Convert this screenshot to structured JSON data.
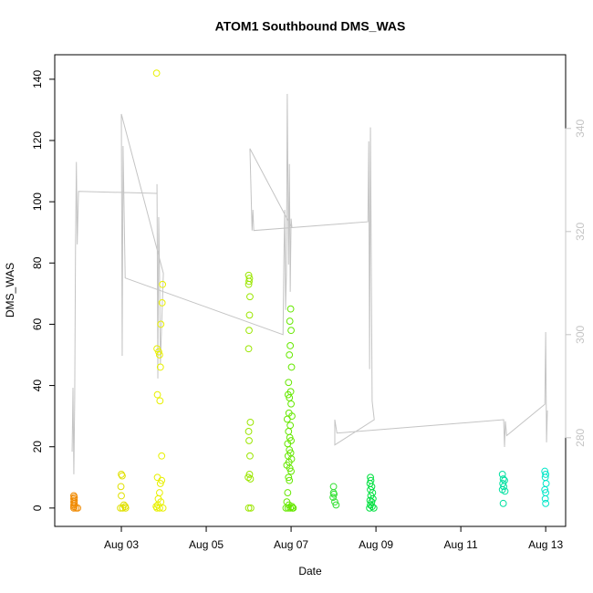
{
  "chart_data": {
    "type": "scatter",
    "title": "ATOM1 Southbound DMS_WAS",
    "x_label": "Date",
    "y_label": "DMS_WAS",
    "xlim": [
      1.43,
      13.47
    ],
    "ylim": [
      -6,
      148
    ],
    "y2lim": [
      262.8,
      354.3
    ],
    "xticks": [
      {
        "value": 3,
        "label": "Aug 03"
      },
      {
        "value": 5,
        "label": "Aug 05"
      },
      {
        "value": 7,
        "label": "Aug 07"
      },
      {
        "value": 9,
        "label": "Aug 09"
      },
      {
        "value": 11,
        "label": "Aug 11"
      },
      {
        "value": 13,
        "label": "Aug 13"
      }
    ],
    "yticks": [
      0,
      20,
      40,
      60,
      80,
      100,
      120,
      140
    ],
    "y2ticks": [
      280,
      300,
      320,
      340
    ],
    "series": [
      {
        "color": "#f08a00",
        "x": [
          1.88,
          1.88,
          1.88,
          1.89,
          1.88,
          1.89,
          1.88,
          1.89,
          1.88,
          1.93,
          1.97
        ],
        "values": [
          0,
          0.5,
          1,
          1.5,
          2,
          2.5,
          3,
          3.5,
          4,
          0,
          0
        ]
      },
      {
        "color": "#e0e000",
        "x": [
          3.0,
          3.02,
          2.99,
          3.0,
          3.06,
          2.98,
          3.03,
          3.09,
          3.1
        ],
        "values": [
          11,
          10.5,
          7,
          4,
          1,
          0,
          0,
          0.5,
          0
        ]
      },
      {
        "color": "#e8f000",
        "x": [
          3.83,
          3.97,
          3.96,
          3.93,
          3.84,
          3.88,
          3.9,
          3.92,
          3.85,
          3.91,
          3.95,
          3.85,
          3.95,
          3.92,
          3.9,
          3.87,
          3.93,
          3.86,
          3.82,
          3.84,
          3.9,
          3.98
        ],
        "values": [
          142,
          73,
          67,
          60,
          52,
          51,
          50,
          46,
          37,
          35,
          17,
          10,
          9,
          8,
          5,
          3,
          2,
          1,
          0.5,
          0,
          0,
          0
        ]
      },
      {
        "color": "#9be600",
        "x": [
          6.0,
          6.02,
          6.01,
          6.0,
          6.03,
          6.02,
          6.01,
          6.0,
          6.04,
          6.0,
          6.01,
          6.03,
          6.02,
          5.99,
          6.04,
          6.0,
          6.05
        ],
        "values": [
          76,
          75,
          74,
          73,
          69,
          63,
          58,
          52,
          28,
          25,
          22,
          17,
          11,
          10,
          9.5,
          0,
          0
        ]
      },
      {
        "color": "#66e800",
        "x": [
          6.99,
          6.97,
          7.0,
          6.98,
          6.96,
          7.01,
          6.94,
          6.99,
          6.93,
          6.96,
          7.0,
          6.95,
          7.02,
          6.91,
          6.98,
          6.94,
          6.97,
          7.0,
          6.92,
          6.96,
          6.99,
          6.93,
          7.01,
          6.95,
          6.9,
          6.97,
          7.0,
          6.94,
          6.96,
          6.92,
          6.9,
          6.95,
          7.02,
          6.88,
          6.93,
          6.98,
          7.03,
          7.05
        ],
        "values": [
          65,
          61,
          58,
          53,
          50,
          46,
          41,
          38,
          37,
          36,
          34,
          31,
          30,
          29,
          27,
          25,
          23,
          22,
          21,
          19,
          18,
          17,
          16,
          15,
          14,
          13,
          12,
          10,
          9,
          5,
          2,
          1,
          0.5,
          0,
          0,
          0,
          0,
          0
        ]
      },
      {
        "color": "#33e033",
        "x": [
          8.0,
          8.0,
          8.01,
          7.99,
          8.03,
          8.06
        ],
        "values": [
          7,
          5,
          4.5,
          3.5,
          2,
          1
        ]
      },
      {
        "color": "#00e040",
        "x": [
          8.87,
          8.88,
          8.86,
          8.9,
          8.87,
          8.92,
          8.88,
          8.93,
          8.86,
          8.9,
          8.87,
          8.91,
          8.85,
          8.95
        ],
        "values": [
          10,
          9,
          8,
          7,
          6,
          5,
          4,
          3,
          2.5,
          2,
          1,
          0.5,
          0,
          0
        ]
      },
      {
        "color": "#00e0a0",
        "x": [
          11.98,
          12.0,
          12.03,
          11.99,
          12.01,
          11.98,
          12.04,
          12.0
        ],
        "values": [
          11,
          9.5,
          9,
          8,
          7,
          6,
          5.5,
          1.5
        ]
      },
      {
        "color": "#00e6c8",
        "x": [
          12.98,
          13.0,
          12.99,
          13.01,
          12.98,
          13.0,
          12.99,
          13.0
        ],
        "values": [
          12,
          11,
          10,
          8,
          6,
          5,
          3,
          1.5
        ]
      },
      {
        "type": "line",
        "axis": "y2",
        "color": "#c4c4c4",
        "x": [
          1.84,
          1.86,
          1.88,
          1.9,
          1.92,
          1.94,
          1.96,
          1.99,
          3.84,
          3.84,
          3.86,
          3.88,
          3.9,
          3.92,
          3.95,
          3.99,
          3.0,
          3.02,
          3.04,
          3.09,
          6.81,
          6.83,
          6.85,
          6.87,
          6.89,
          6.91,
          6.94,
          6.96,
          6.98,
          7.0,
          7.02,
          6.03,
          6.08,
          6.1,
          6.12,
          8.81,
          8.83,
          8.85,
          8.87,
          8.91,
          8.96,
          8.03,
          8.03,
          8.08,
          12.01,
          12.03,
          12.05,
          12.08,
          12.98,
          13.0,
          13.02,
          13.04
        ],
        "values": [
          277.3,
          289.7,
          272.9,
          287.1,
          317.2,
          333.5,
          317.5,
          327.8,
          327.4,
          329.2,
          291.5,
          322.8,
          311.9,
          294.2,
          302.1,
          311.9,
          342.8,
          295.9,
          336.6,
          311.0,
          300.0,
          314.5,
          324.2,
          304.8,
          311.9,
          346.7,
          313.6,
          333.1,
          308.3,
          322.5,
          320.7,
          336.1,
          320.2,
          324.2,
          320.2,
          321.9,
          337.5,
          293.3,
          340.2,
          287.1,
          283.5,
          278.6,
          283.5,
          280.9,
          283.5,
          278.2,
          283.2,
          280.4,
          286.5,
          300.5,
          279.1,
          285.3
        ]
      }
    ]
  }
}
